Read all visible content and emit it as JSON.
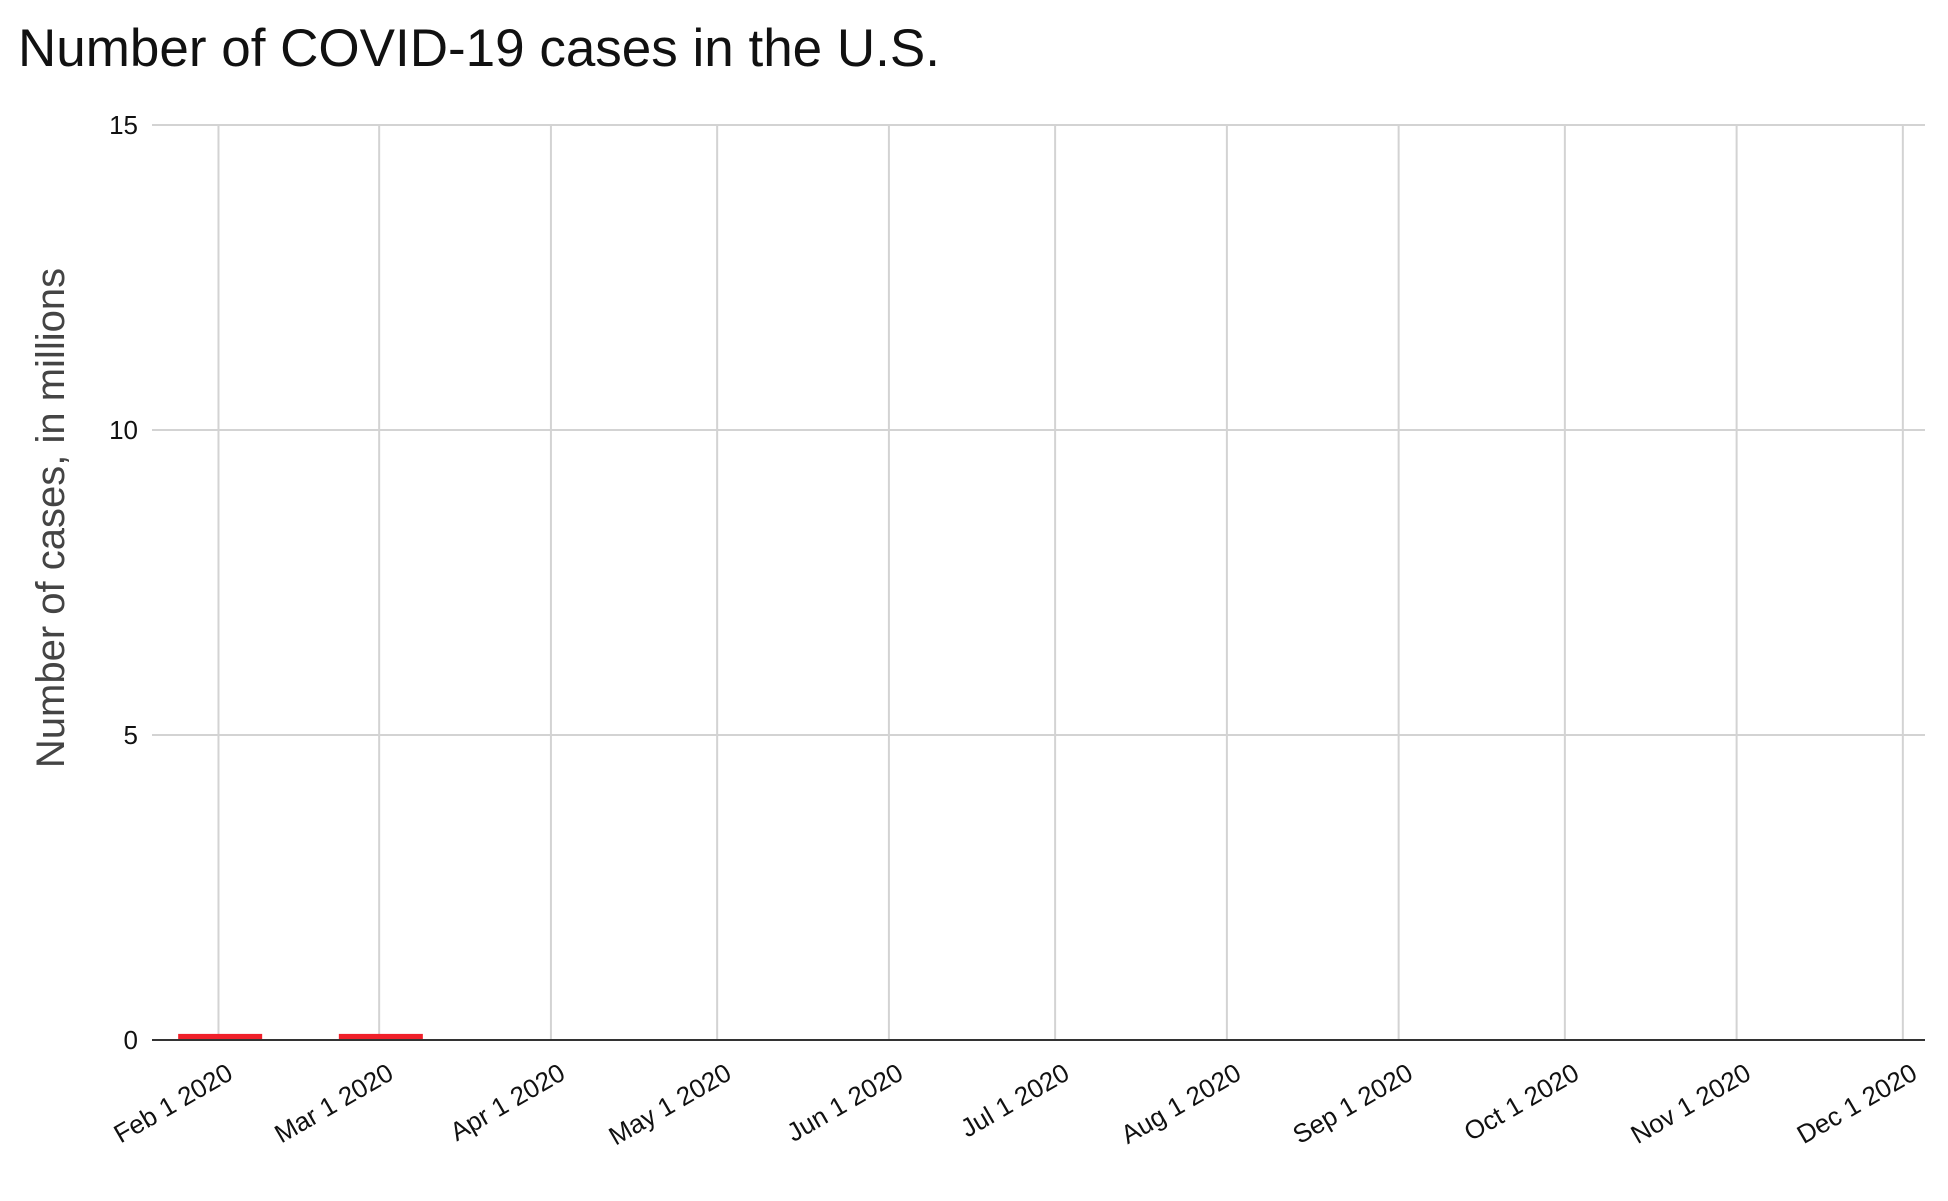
{
  "chart_data": {
    "type": "bar",
    "title": "Number of COVID-19 cases in the U.S.",
    "xlabel": "",
    "ylabel": "Number of cases, in millions",
    "ylim": [
      0,
      15
    ],
    "yticks": [
      "0",
      "5",
      "10",
      "15"
    ],
    "xticks": [
      "Feb 1 2020",
      "Mar 1 2020",
      "Apr 1 2020",
      "May 1 2020",
      "Jun 1 2020",
      "Jul 1 2020",
      "Aug 1 2020",
      "Sep 1 2020",
      "Oct 1 2020",
      "Nov 1 2020",
      "Dec 1 2020"
    ],
    "categories": [
      "Feb 1 2020",
      "Mar 1 2020"
    ],
    "values": [
      0.1,
      0.1
    ],
    "bar_color": "#f0202a",
    "grid": true,
    "legend": "none"
  }
}
